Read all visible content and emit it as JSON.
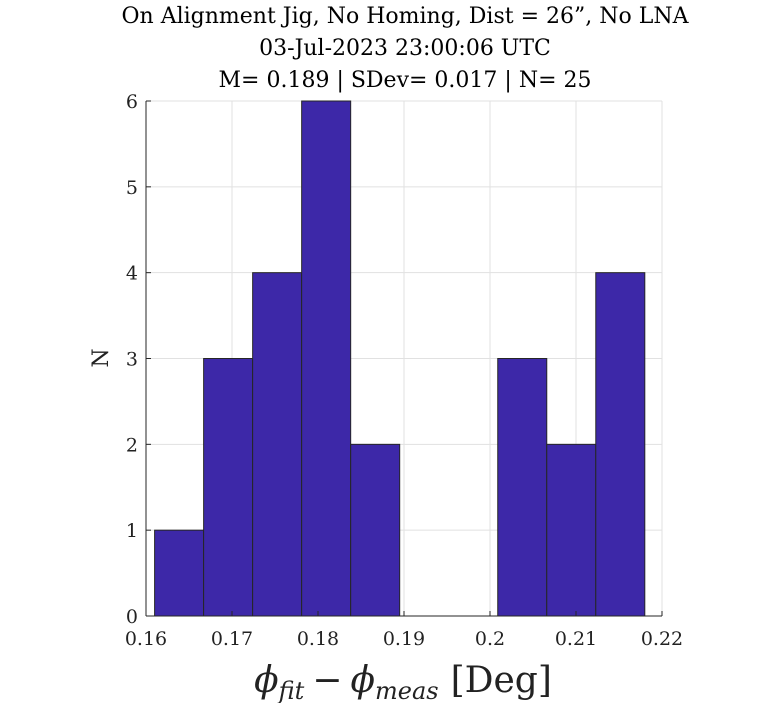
{
  "chart_data": {
    "type": "bar",
    "title_lines": [
      "On Alignment Jig, No Homing, Dist = 26”, No LNA",
      "03-Jul-2023 23:00:06 UTC",
      "M= 0.189 | SDev= 0.017 | N= 25"
    ],
    "xlabel": {
      "phi": "ϕ",
      "sub1": "fit",
      "minus": "−",
      "sub2": "meas",
      "unit": "[Deg]"
    },
    "ylabel": "N",
    "xlim": [
      0.16,
      0.22
    ],
    "ylim": [
      0,
      6
    ],
    "xticks": [
      0.16,
      0.17,
      0.18,
      0.19,
      0.2,
      0.21,
      0.22
    ],
    "xtick_labels": [
      "0.16",
      "0.17",
      "0.18",
      "0.19",
      "0.2",
      "0.21",
      "0.22"
    ],
    "yticks": [
      0,
      1,
      2,
      3,
      4,
      5,
      6
    ],
    "ytick_labels": [
      "0",
      "1",
      "2",
      "3",
      "4",
      "5",
      "6"
    ],
    "bin_edges": [
      0.161,
      0.1667,
      0.1724,
      0.1781,
      0.1838,
      0.1895,
      0.1952,
      0.2009,
      0.2066,
      0.2123,
      0.218
    ],
    "values": [
      1,
      3,
      4,
      6,
      2,
      0,
      0,
      3,
      2,
      4
    ],
    "grid": true,
    "bar_color": "#3d28a8",
    "edge_color": "#262626"
  }
}
